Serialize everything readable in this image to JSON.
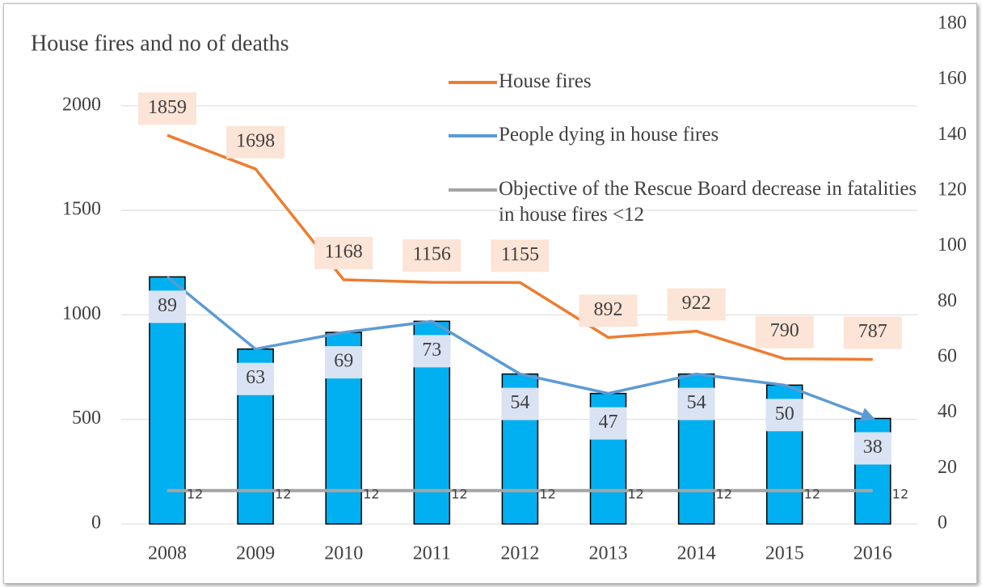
{
  "chart_data": {
    "type": "combo",
    "title": "House fires and no of deaths",
    "categories": [
      "2008",
      "2009",
      "2010",
      "2011",
      "2012",
      "2013",
      "2014",
      "2015",
      "2016"
    ],
    "series": [
      {
        "name": "House fires",
        "color": "#ed7d31",
        "draw_as": [
          "line"
        ],
        "values": [
          1859,
          1698,
          1168,
          1156,
          1155,
          892,
          922,
          790,
          787
        ]
      },
      {
        "name": "People dying in house fires",
        "color": "#5b9bd5",
        "bar_color": "#00b0f0",
        "axis": "y2",
        "draw_as": [
          "bar",
          "line"
        ],
        "values": [
          89,
          63,
          69,
          73,
          54,
          47,
          54,
          50,
          38
        ]
      },
      {
        "name": "Objective of the Rescue Board decrease in fatalities in house fires  <12",
        "color": "#a5a5a5",
        "axis": "y2",
        "draw_as": [
          "line"
        ],
        "values": [
          12,
          12,
          12,
          12,
          12,
          12,
          12,
          12,
          12
        ]
      }
    ],
    "ylim": [
      0,
      2390
    ],
    "yticks": [
      0,
      500,
      1000,
      1500,
      2000
    ],
    "y2lim": [
      0,
      180
    ],
    "y2ticks": [
      0,
      20,
      40,
      60,
      80,
      100,
      120,
      140,
      160,
      180
    ],
    "grid": true
  }
}
